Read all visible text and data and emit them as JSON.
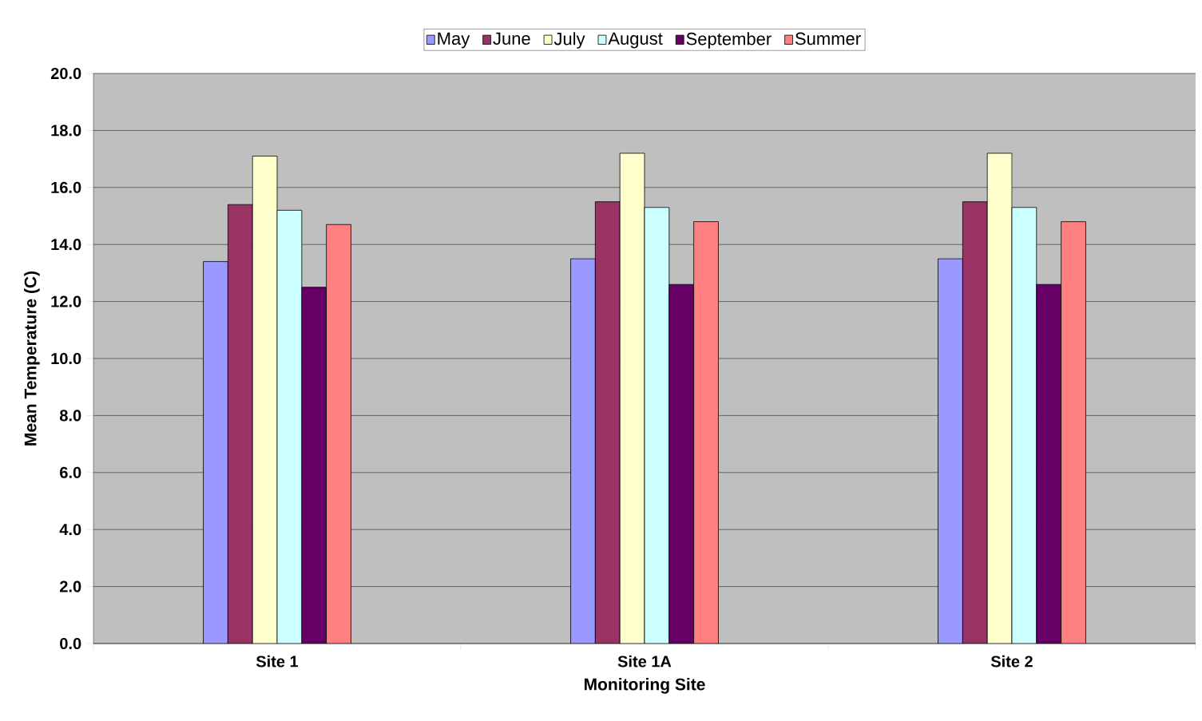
{
  "chart_data": {
    "type": "bar",
    "xlabel": "Monitoring Site",
    "ylabel": "Mean Temperature (C)",
    "categories": [
      "Site 1",
      "Site 1A",
      "Site 2"
    ],
    "series": [
      {
        "name": "May",
        "color": "#9999ff",
        "values": [
          13.4,
          13.5,
          13.5
        ]
      },
      {
        "name": "June",
        "color": "#993366",
        "values": [
          15.4,
          15.5,
          15.5
        ]
      },
      {
        "name": "July",
        "color": "#ffffcc",
        "values": [
          17.1,
          17.2,
          17.2
        ]
      },
      {
        "name": "August",
        "color": "#ccffff",
        "values": [
          15.2,
          15.3,
          15.3
        ]
      },
      {
        "name": "September",
        "color": "#660066",
        "values": [
          12.5,
          12.6,
          12.6
        ]
      },
      {
        "name": "Summer",
        "color": "#ff8080",
        "values": [
          14.7,
          14.8,
          14.8
        ]
      }
    ],
    "ylim": [
      0,
      20
    ],
    "yticks": [
      {
        "value": 0,
        "label": "0.0"
      },
      {
        "value": 2,
        "label": "2.0"
      },
      {
        "value": 4,
        "label": "4.0"
      },
      {
        "value": 6,
        "label": "6.0"
      },
      {
        "value": 8,
        "label": "8.0"
      },
      {
        "value": 10,
        "label": "10.0"
      },
      {
        "value": 12,
        "label": "12.0"
      },
      {
        "value": 14,
        "label": "14.0"
      },
      {
        "value": 16,
        "label": "16.0"
      },
      {
        "value": 18,
        "label": "18.0"
      },
      {
        "value": 20,
        "label": "20.0"
      }
    ],
    "grid": "y",
    "legend": "top"
  }
}
